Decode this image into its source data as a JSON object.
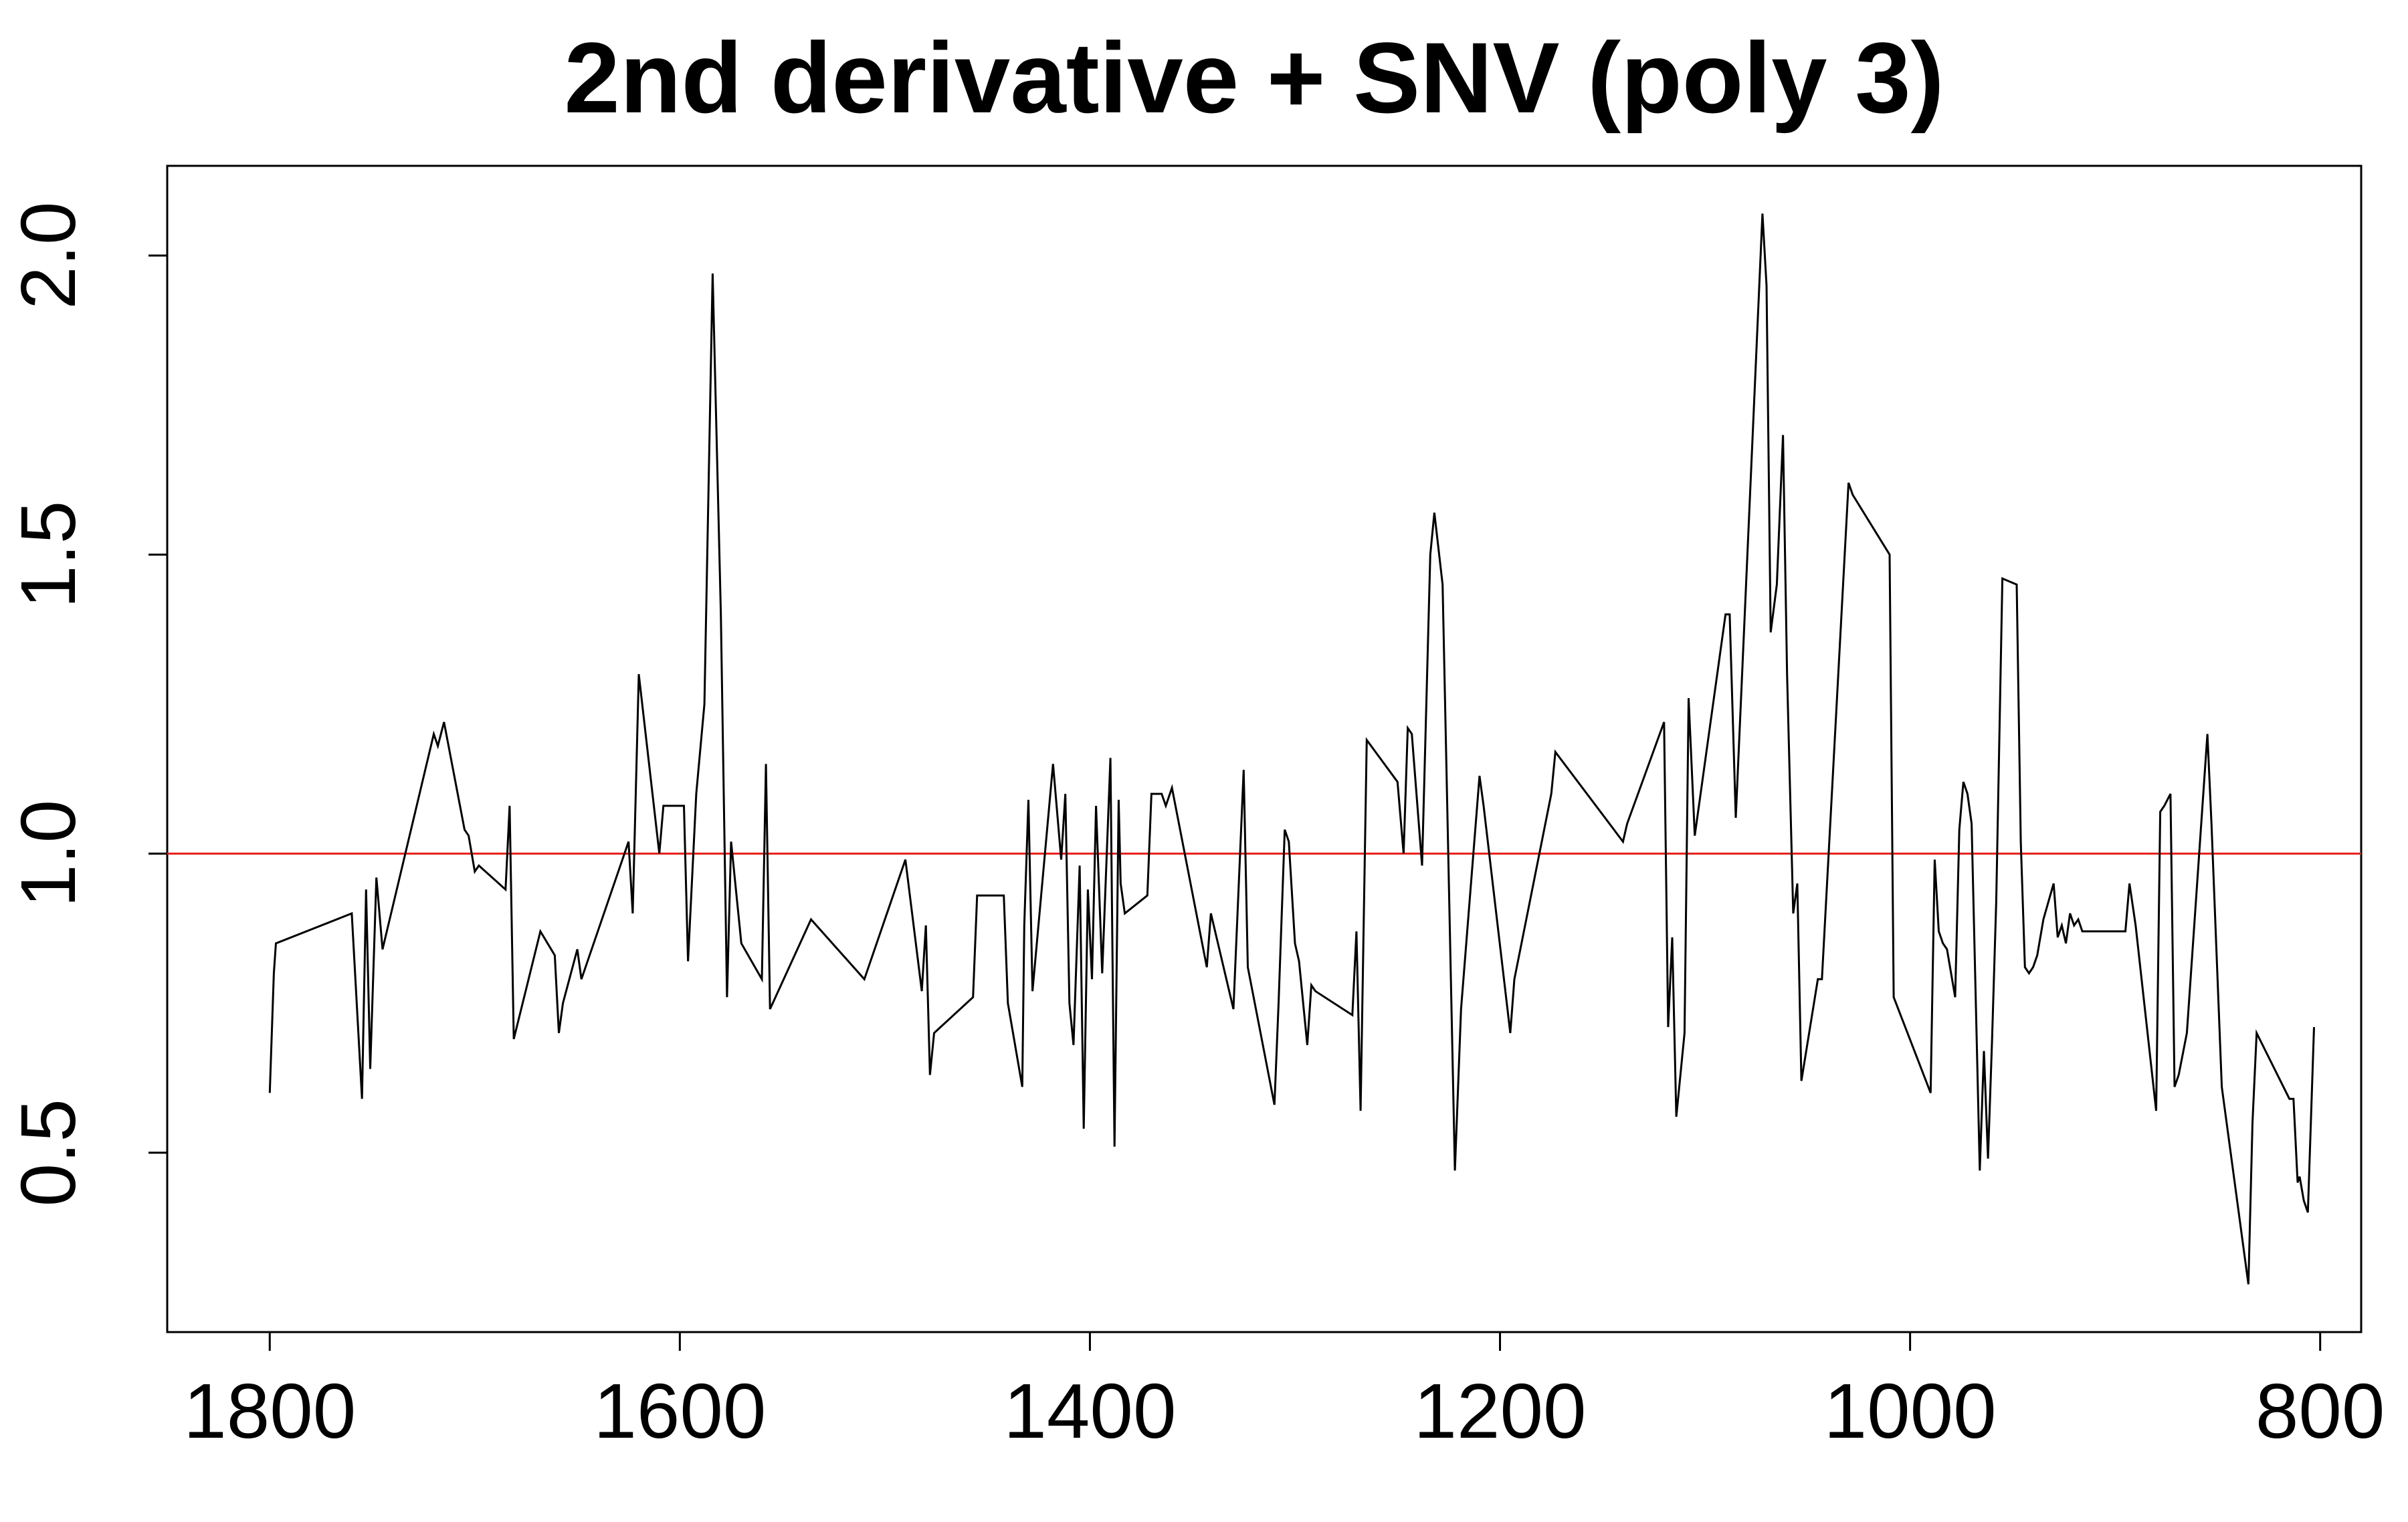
{
  "chart_data": {
    "type": "line",
    "title": "2nd derivative + SNV (poly 3)",
    "xlabel": "",
    "ylabel": "",
    "xlim": [
      1850,
      780
    ],
    "ylim": [
      0.2,
      2.15
    ],
    "x_ticks": [
      1800,
      1600,
      1400,
      1200,
      1000,
      800
    ],
    "x_tick_labels": [
      "1800",
      "1600",
      "1400",
      "1200",
      "1000",
      "800"
    ],
    "y_ticks": [
      0.5,
      1.0,
      1.5,
      2.0
    ],
    "y_tick_labels": [
      "0.5",
      "1.0",
      "1.5",
      "2.0"
    ],
    "grid": false,
    "legend": "none",
    "reference_line": {
      "y": 1.0,
      "color": "#e8221b"
    },
    "series": [
      {
        "color": "#000000",
        "x": [
          1800,
          1798,
          1797,
          1760,
          1755,
          1753,
          1751,
          1748,
          1745,
          1720,
          1718,
          1715,
          1705,
          1703,
          1700,
          1698,
          1685,
          1683,
          1681,
          1668,
          1661,
          1659,
          1657,
          1650,
          1648,
          1625,
          1623,
          1620,
          1610,
          1608,
          1598,
          1596,
          1592,
          1588,
          1584,
          1580,
          1577,
          1575,
          1570,
          1560,
          1558,
          1556,
          1536,
          1510,
          1490,
          1482,
          1480,
          1478,
          1476,
          1457,
          1455,
          1442,
          1440,
          1433,
          1432,
          1430,
          1428,
          1418,
          1414,
          1412,
          1410,
          1408,
          1405,
          1403,
          1401,
          1399,
          1397,
          1394,
          1390,
          1388,
          1386,
          1385,
          1383,
          1372,
          1370,
          1365,
          1363,
          1360,
          1343,
          1341,
          1330,
          1325,
          1323,
          1310,
          1308,
          1305,
          1303,
          1300,
          1298,
          1294,
          1292,
          1290,
          1272,
          1270,
          1268,
          1265,
          1250,
          1247,
          1245,
          1243,
          1238,
          1234,
          1232,
          1228,
          1222,
          1219,
          1210,
          1208,
          1195,
          1193,
          1175,
          1173,
          1140,
          1138,
          1120,
          1118,
          1116,
          1114,
          1110,
          1108,
          1105,
          1090,
          1088,
          1085,
          1072,
          1070,
          1068,
          1065,
          1062,
          1060,
          1057,
          1055,
          1053,
          1045,
          1043,
          1030,
          1028,
          1010,
          1008,
          990,
          988,
          986,
          984,
          982,
          978,
          976,
          974,
          972,
          970,
          966,
          964,
          962,
          960,
          958,
          955,
          948,
          946,
          944,
          942,
          940,
          938,
          935,
          930,
          928,
          926,
          924,
          922,
          920,
          918,
          916,
          895,
          893,
          890,
          880,
          878,
          876,
          873,
          871,
          869,
          865,
          855,
          853,
          848,
          835,
          833,
          831,
          815,
          813,
          811,
          810,
          808,
          806,
          803
        ],
        "y": [
          0.6,
          0.8,
          0.85,
          0.9,
          0.59,
          0.94,
          0.64,
          0.96,
          0.84,
          1.2,
          1.18,
          1.22,
          1.04,
          1.03,
          0.97,
          0.98,
          0.94,
          1.08,
          0.69,
          0.87,
          0.83,
          0.7,
          0.75,
          0.84,
          0.79,
          1.02,
          0.9,
          1.3,
          1.0,
          1.08,
          1.08,
          0.82,
          1.1,
          1.25,
          1.97,
          1.4,
          0.76,
          1.02,
          0.85,
          0.79,
          1.15,
          0.74,
          0.89,
          0.79,
          0.99,
          0.77,
          0.88,
          0.63,
          0.7,
          0.76,
          0.93,
          0.93,
          0.75,
          0.61,
          0.88,
          1.09,
          0.77,
          1.15,
          0.99,
          1.1,
          0.75,
          0.68,
          0.98,
          0.54,
          0.94,
          0.79,
          1.08,
          0.8,
          1.16,
          0.51,
          1.09,
          0.95,
          0.9,
          0.93,
          1.1,
          1.1,
          1.08,
          1.11,
          0.81,
          0.9,
          0.74,
          1.14,
          0.81,
          0.58,
          0.75,
          1.04,
          1.02,
          0.85,
          0.82,
          0.68,
          0.78,
          0.77,
          0.73,
          0.87,
          0.57,
          1.19,
          1.12,
          1.0,
          1.21,
          1.2,
          0.98,
          1.5,
          1.57,
          1.45,
          0.47,
          0.74,
          1.13,
          1.08,
          0.7,
          0.79,
          1.1,
          1.17,
          1.02,
          1.05,
          1.22,
          0.71,
          0.86,
          0.56,
          0.7,
          1.26,
          1.03,
          1.4,
          1.4,
          1.06,
          2.07,
          1.95,
          1.37,
          1.45,
          1.7,
          1.3,
          0.9,
          0.95,
          0.62,
          0.79,
          0.79,
          1.62,
          1.6,
          1.5,
          0.76,
          0.6,
          0.99,
          0.87,
          0.85,
          0.84,
          0.76,
          1.04,
          1.12,
          1.1,
          1.05,
          0.47,
          0.67,
          0.49,
          0.69,
          0.92,
          1.46,
          1.45,
          1.02,
          0.81,
          0.8,
          0.81,
          0.83,
          0.89,
          0.95,
          0.86,
          0.88,
          0.85,
          0.9,
          0.88,
          0.89,
          0.87,
          0.87,
          0.95,
          0.88,
          0.57,
          1.07,
          1.08,
          1.1,
          0.61,
          0.63,
          0.7,
          1.2,
          1.05,
          0.61,
          0.28,
          0.55,
          0.7,
          0.59,
          0.59,
          0.45,
          0.46,
          0.42,
          0.4,
          0.71
        ]
      }
    ]
  }
}
